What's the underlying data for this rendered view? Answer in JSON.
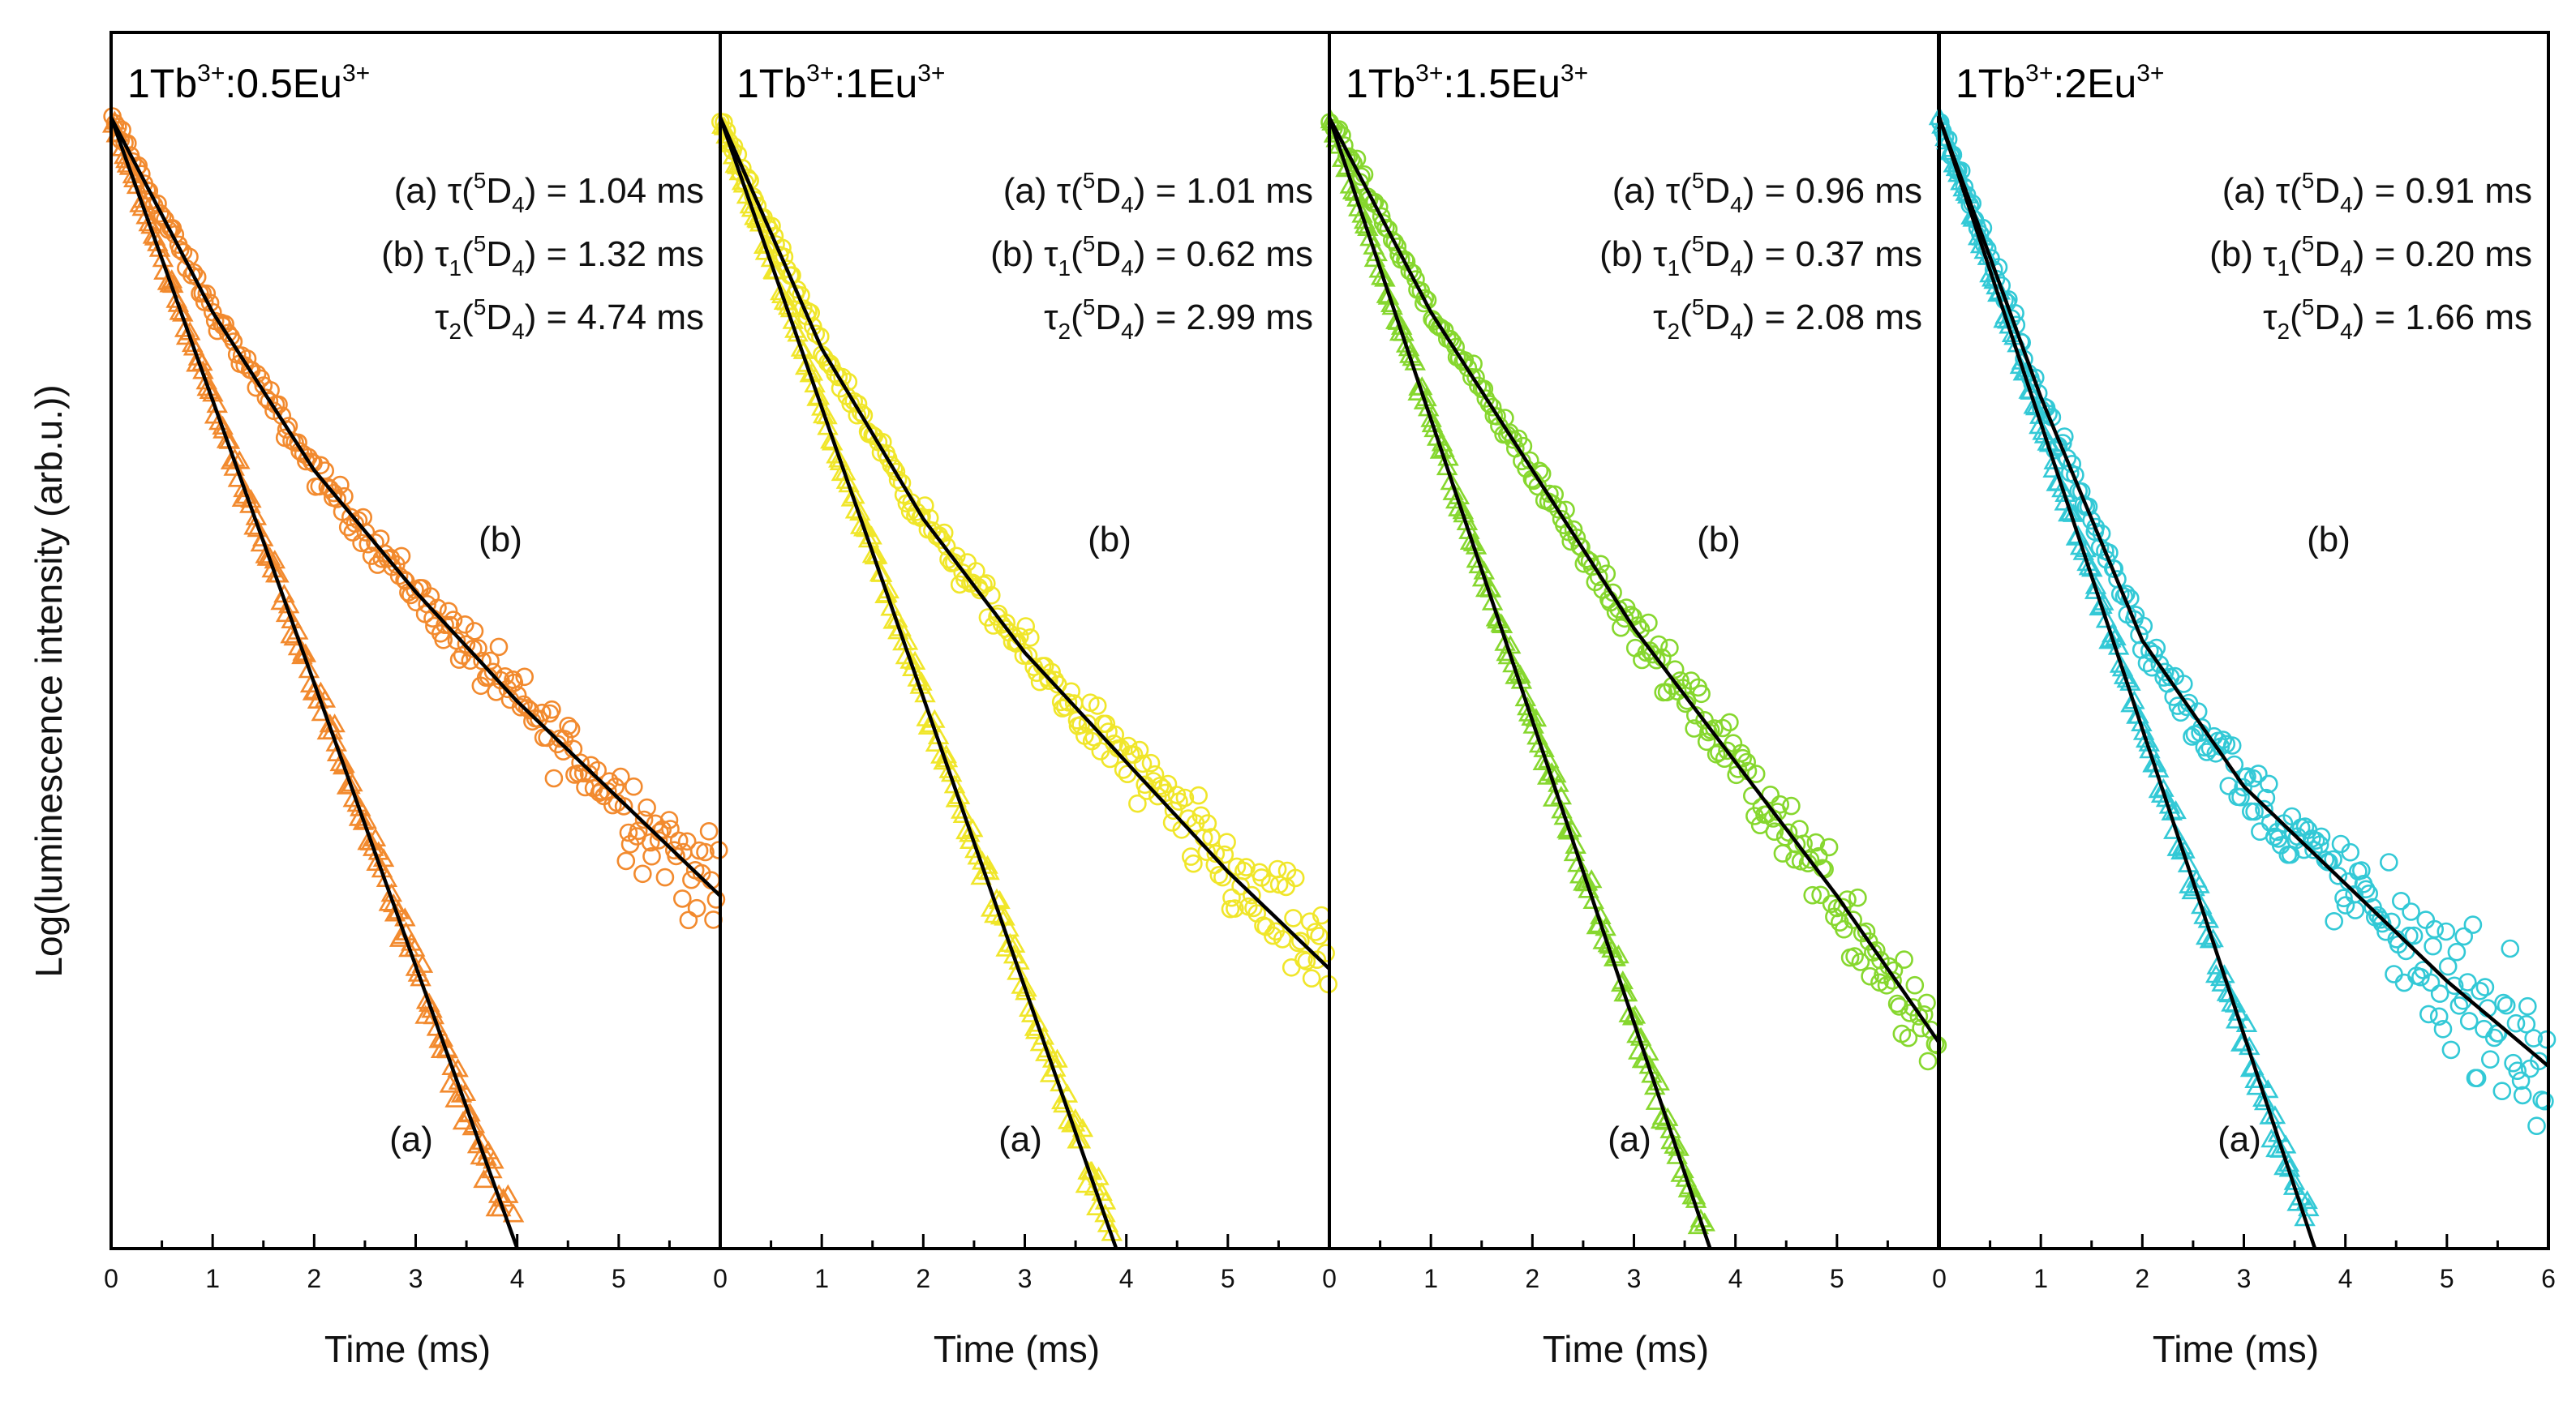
{
  "chart_data": {
    "type": "scatter",
    "ylabel": "Log(luminescence intensity (arb.u.))",
    "y_scale": "log",
    "y_ticks_shown": false,
    "panels": [
      {
        "title_base": "1Tb",
        "title_sup1": "3+",
        "title_mid": ":0.5Eu",
        "title_sup2": "3+",
        "xlabel": "Time (ms)",
        "xlim": [
          0,
          6
        ],
        "x_ticks": [
          "0",
          "1",
          "2",
          "3",
          "4",
          "5",
          "6"
        ],
        "x_tick_labels_shown": [
          "0",
          "1",
          "2",
          "3",
          "4",
          "5"
        ],
        "color": "#f28a2e",
        "lifetimes": {
          "a_prefix": "(a) τ(",
          "a_sup": "5",
          "a_mid": "D",
          "a_sub": "4",
          "a_value": ") =  1.04 ms",
          "b_prefix": "(b) τ",
          "b_sub1": "1",
          "b_open": "(",
          "b_sup": "5",
          "b_mid": "D",
          "b_sub2": "4",
          "b_value": ") = 1.32 ms",
          "c_prefix": "τ",
          "c_sub1": "2",
          "c_open": "(",
          "c_sup": "5",
          "c_mid": "D",
          "c_sub2": "4",
          "c_value": ") = 4.74 ms"
        },
        "series": [
          {
            "name": "(a)",
            "marker": "triangle",
            "tau_ms": 1.04,
            "t_max_ms": 4.5
          },
          {
            "name": "(b)",
            "marker": "circle",
            "tau1_ms": 1.32,
            "tau2_ms": 4.74,
            "t_max_ms": 6.0
          }
        ],
        "curve_a_labels": [
          {
            "t": 0.0,
            "y": 0.93
          },
          {
            "t": 4.0,
            "y": 0.0
          }
        ],
        "curve_b_points": [
          [
            0.0,
            0.93
          ],
          [
            1.0,
            0.77
          ],
          [
            2.0,
            0.64
          ],
          [
            3.0,
            0.54
          ],
          [
            4.0,
            0.45
          ],
          [
            5.0,
            0.37
          ],
          [
            6.0,
            0.29
          ]
        ],
        "series_label_a": "(a)",
        "series_label_b": "(b)"
      },
      {
        "title_base": "1Tb",
        "title_sup1": "3+",
        "title_mid": ":1Eu",
        "title_sup2": "3+",
        "xlabel": "Time (ms)",
        "xlim": [
          0,
          6
        ],
        "x_ticks": [
          "0",
          "1",
          "2",
          "3",
          "4",
          "5",
          "6"
        ],
        "x_tick_labels_shown": [
          "0",
          "1",
          "2",
          "3",
          "4",
          "5"
        ],
        "color": "#f0e62a",
        "lifetimes": {
          "a_prefix": "(a) τ(",
          "a_sup": "5",
          "a_mid": "D",
          "a_sub": "4",
          "a_value": ") =  1.01 ms",
          "b_prefix": "(b) τ",
          "b_sub1": "1",
          "b_open": "(",
          "b_sup": "5",
          "b_mid": "D",
          "b_sub2": "4",
          "b_value": ") = 0.62 ms",
          "c_prefix": "τ",
          "c_sub1": "2",
          "c_open": "(",
          "c_sup": "5",
          "c_mid": "D",
          "c_sub2": "4",
          "c_value": ") = 2.99 ms"
        },
        "series": [
          {
            "name": "(a)",
            "marker": "triangle",
            "tau_ms": 1.01,
            "t_max_ms": 4.6
          },
          {
            "name": "(b)",
            "marker": "circle",
            "tau1_ms": 0.62,
            "tau2_ms": 2.99,
            "t_max_ms": 6.0
          }
        ],
        "curve_a_labels": [
          {
            "t": 0.0,
            "y": 0.93
          },
          {
            "t": 3.9,
            "y": 0.0
          }
        ],
        "curve_b_points": [
          [
            0.0,
            0.93
          ],
          [
            1.0,
            0.74
          ],
          [
            2.0,
            0.6
          ],
          [
            3.0,
            0.49
          ],
          [
            4.0,
            0.4
          ],
          [
            5.0,
            0.31
          ],
          [
            6.0,
            0.23
          ]
        ],
        "series_label_a": "(a)",
        "series_label_b": "(b)"
      },
      {
        "title_base": "1Tb",
        "title_sup1": "3+",
        "title_mid": ":1.5Eu",
        "title_sup2": "3+",
        "xlabel": "Time (ms)",
        "xlim": [
          0,
          6
        ],
        "x_ticks": [
          "0",
          "1",
          "2",
          "3",
          "4",
          "5",
          "6"
        ],
        "x_tick_labels_shown": [
          "0",
          "1",
          "2",
          "3",
          "4",
          "5"
        ],
        "color": "#86d72e",
        "lifetimes": {
          "a_prefix": "(a) τ(",
          "a_sup": "5",
          "a_mid": "D",
          "a_sub": "4",
          "a_value": ") =  0.96 ms",
          "b_prefix": "(b) τ",
          "b_sub1": "1",
          "b_open": "(",
          "b_sup": "5",
          "b_mid": "D",
          "b_sub2": "4",
          "b_value": ") = 0.37 ms",
          "c_prefix": "τ",
          "c_sub1": "2",
          "c_open": "(",
          "c_sup": "5",
          "c_mid": "D",
          "c_sub2": "4",
          "c_value": ") = 2.08 ms"
        },
        "series": [
          {
            "name": "(a)",
            "marker": "triangle",
            "tau_ms": 0.96,
            "t_max_ms": 4.4
          },
          {
            "name": "(b)",
            "marker": "circle",
            "tau1_ms": 0.37,
            "tau2_ms": 2.08,
            "t_max_ms": 6.0
          }
        ],
        "curve_a_labels": [
          {
            "t": 0.0,
            "y": 0.93
          },
          {
            "t": 3.75,
            "y": 0.0
          }
        ],
        "curve_b_points": [
          [
            0.0,
            0.93
          ],
          [
            1.0,
            0.77
          ],
          [
            2.0,
            0.64
          ],
          [
            3.0,
            0.51
          ],
          [
            4.0,
            0.4
          ],
          [
            5.0,
            0.29
          ],
          [
            6.0,
            0.17
          ]
        ],
        "series_label_a": "(a)",
        "series_label_b": "(b)"
      },
      {
        "title_base": "1Tb",
        "title_sup1": "3+",
        "title_mid": ":2Eu",
        "title_sup2": "3+",
        "xlabel": "Time (ms)",
        "xlim": [
          0,
          6
        ],
        "x_ticks": [
          "0",
          "1",
          "2",
          "3",
          "4",
          "5",
          "6"
        ],
        "x_tick_labels_shown": [
          "0",
          "1",
          "2",
          "3",
          "4",
          "5",
          "6"
        ],
        "color": "#33c9d6",
        "lifetimes": {
          "a_prefix": "(a) τ(",
          "a_sup": "5",
          "a_mid": "D",
          "a_sub": "4",
          "a_value": ") =  0.91 ms",
          "b_prefix": "(b) τ",
          "b_sub1": "1",
          "b_open": "(",
          "b_sup": "5",
          "b_mid": "D",
          "b_sub2": "4",
          "b_value": ") = 0.20 ms",
          "c_prefix": "τ",
          "c_sub1": "2",
          "c_open": "(",
          "c_sup": "5",
          "c_mid": "D",
          "c_sub2": "4",
          "c_value": ") = 1.66 ms"
        },
        "series": [
          {
            "name": "(a)",
            "marker": "triangle",
            "tau_ms": 0.91,
            "t_max_ms": 4.6
          },
          {
            "name": "(b)",
            "marker": "circle",
            "tau1_ms": 0.2,
            "tau2_ms": 1.66,
            "t_max_ms": 6.0
          }
        ],
        "curve_a_labels": [
          {
            "t": 0.0,
            "y": 0.93
          },
          {
            "t": 3.7,
            "y": 0.0
          }
        ],
        "curve_b_points": [
          [
            0.0,
            0.93
          ],
          [
            1.0,
            0.7
          ],
          [
            2.0,
            0.5
          ],
          [
            3.0,
            0.38
          ],
          [
            4.0,
            0.3
          ],
          [
            5.0,
            0.22
          ],
          [
            6.0,
            0.15
          ]
        ],
        "series_label_a": "(a)",
        "series_label_b": "(b)"
      }
    ]
  }
}
